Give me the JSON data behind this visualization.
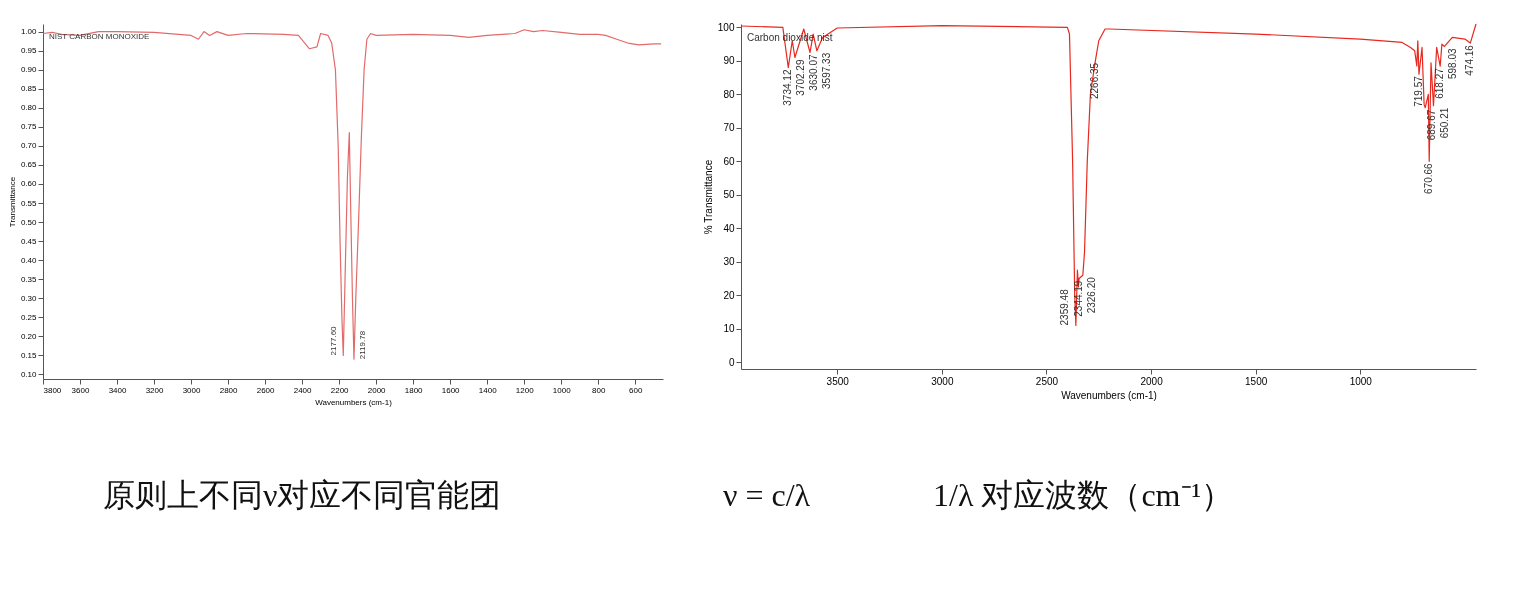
{
  "chart_data": [
    {
      "type": "line",
      "xlabel": "Wavenumbers (cm-1)",
      "ylabel": "Transmittance",
      "annotations": [
        "NIST CARBON MONOXIDE",
        {
          "text": "2177.60",
          "x": 2177.6,
          "y": 0.15
        },
        {
          "text": "2119.78",
          "x": 2119.78,
          "y": 0.14
        }
      ],
      "x": [
        3800,
        3750,
        3700,
        3600,
        3500,
        3400,
        3200,
        3000,
        2960,
        2930,
        2900,
        2860,
        2800,
        2700,
        2500,
        2420,
        2360,
        2320,
        2300,
        2260,
        2240,
        2220,
        2205,
        2195,
        2185,
        2177.6,
        2168,
        2155,
        2145,
        2138,
        2128,
        2119.78,
        2110,
        2095,
        2080,
        2065,
        2050,
        2030,
        2000,
        1800,
        1600,
        1500,
        1400,
        1250,
        1200,
        1150,
        1100,
        1000,
        900,
        800,
        760,
        700,
        640,
        580,
        500,
        460
      ],
      "series": [
        {
          "color": "#e36a6a",
          "values": [
            0.995,
            0.998,
            0.993,
            0.99,
            1.0,
            1.0,
            0.998,
            0.99,
            0.98,
            1.0,
            0.99,
            1.0,
            0.99,
            0.995,
            0.993,
            0.99,
            0.955,
            0.96,
            0.995,
            0.99,
            0.97,
            0.9,
            0.7,
            0.45,
            0.25,
            0.15,
            0.35,
            0.62,
            0.735,
            0.55,
            0.3,
            0.14,
            0.3,
            0.5,
            0.72,
            0.9,
            0.98,
            0.995,
            0.99,
            0.993,
            0.99,
            0.985,
            0.99,
            0.995,
            1.005,
            1.0,
            1.003,
            0.998,
            0.993,
            0.993,
            0.99,
            0.98,
            0.97,
            0.965,
            0.968,
            0.968
          ]
        }
      ],
      "xlim": [
        3800,
        450
      ],
      "ylim": [
        0.088,
        1.02
      ],
      "xticks": [
        3800,
        3600,
        3400,
        3200,
        3000,
        2800,
        2600,
        2400,
        2200,
        2000,
        1800,
        1600,
        1400,
        1200,
        1000,
        800,
        600
      ],
      "yticks": [
        {
          "value": 1.0,
          "label": "1.00"
        },
        0.95,
        {
          "value": 0.9,
          "label": "0.90"
        },
        0.85,
        {
          "value": 0.8,
          "label": "0.80"
        },
        0.75,
        {
          "value": 0.7,
          "label": "0.70"
        },
        0.65,
        {
          "value": 0.6,
          "label": "0.60"
        },
        0.55,
        {
          "value": 0.5,
          "label": "0.50"
        },
        0.45,
        {
          "value": 0.4,
          "label": "0.40"
        },
        0.35,
        {
          "value": 0.3,
          "label": "0.30"
        },
        0.25,
        {
          "value": 0.2,
          "label": "0.20"
        },
        0.15,
        {
          "value": 0.1,
          "label": "0.10"
        }
      ]
    },
    {
      "type": "line",
      "xlabel": "Wavenumbers (cm-1)",
      "ylabel": "% Transmittance",
      "annotations": [
        "Carbon dioxide nist",
        {
          "text": "3734.12",
          "x": 3734.12,
          "y": 88
        },
        {
          "text": "3702.29",
          "x": 3702.29,
          "y": 91
        },
        {
          "text": "3630.07",
          "x": 3630.07,
          "y": 92.5
        },
        {
          "text": "3597.33",
          "x": 3597.33,
          "y": 93
        },
        {
          "text": "2359.48",
          "x": 2359.48,
          "y": 11
        },
        {
          "text": "2344.19",
          "x": 2344.19,
          "y": 25
        },
        {
          "text": "2326.20",
          "x": 2326.2,
          "y": 26
        },
        {
          "text": "2266.35",
          "x": 2266.35,
          "y": 90
        },
        {
          "text": "719.57",
          "x": 719.57,
          "y": 86
        },
        {
          "text": "689.67",
          "x": 689.67,
          "y": 76
        },
        {
          "text": "670.66",
          "x": 670.66,
          "y": 60
        },
        {
          "text": "650.21",
          "x": 650.21,
          "y": 76.6
        },
        {
          "text": "618.27",
          "x": 618.27,
          "y": 88.4
        },
        {
          "text": "598.03",
          "x": 598.03,
          "y": 94.3
        },
        {
          "text": "474.16",
          "x": 474.16,
          "y": 95.3
        }
      ],
      "x": [
        3960,
        3760,
        3734.12,
        3715,
        3702.29,
        3660,
        3630.07,
        3615,
        3597.33,
        3570,
        3500,
        3000,
        2400,
        2390,
        2375,
        2365,
        2359.48,
        2352,
        2347,
        2344.19,
        2326.2,
        2318,
        2305,
        2290,
        2266.35,
        2250,
        2220,
        2200,
        1500,
        1000,
        800,
        760,
        740,
        730,
        725,
        719.57,
        705,
        695,
        689.67,
        675,
        670.66,
        662,
        650.21,
        635,
        618.27,
        610,
        598.03,
        560,
        500,
        474.16,
        447
      ],
      "series": [
        {
          "color": "#e8281e",
          "values": [
            100.4,
            100,
            88,
            96,
            91,
            99.5,
            92.5,
            98,
            93,
            97,
            99.8,
            100.5,
            100,
            98,
            60,
            20,
            11,
            27.5,
            22.5,
            25,
            26,
            33,
            60,
            80,
            90,
            96,
            99.5,
            99.5,
            98,
            96.5,
            95.5,
            94,
            93,
            88.5,
            96,
            86,
            94,
            77,
            76,
            80,
            60,
            89.4,
            76.6,
            94,
            88.4,
            95,
            94.3,
            97,
            96.5,
            95.3,
            101
          ]
        }
      ],
      "xlim": [
        3960,
        447
      ],
      "ylim": [
        -2,
        101
      ],
      "xticks": [
        3500,
        3000,
        2500,
        2000,
        1500,
        1000
      ],
      "yticks": [
        0,
        10,
        20,
        30,
        40,
        50,
        60,
        70,
        80,
        90,
        100
      ]
    },
    {
      "type": "other",
      "annotations": [
        "原则上不同ν对应不同官能团",
        "ν = c/λ",
        "1/λ 对应波数（cm⁻¹）"
      ]
    }
  ]
}
